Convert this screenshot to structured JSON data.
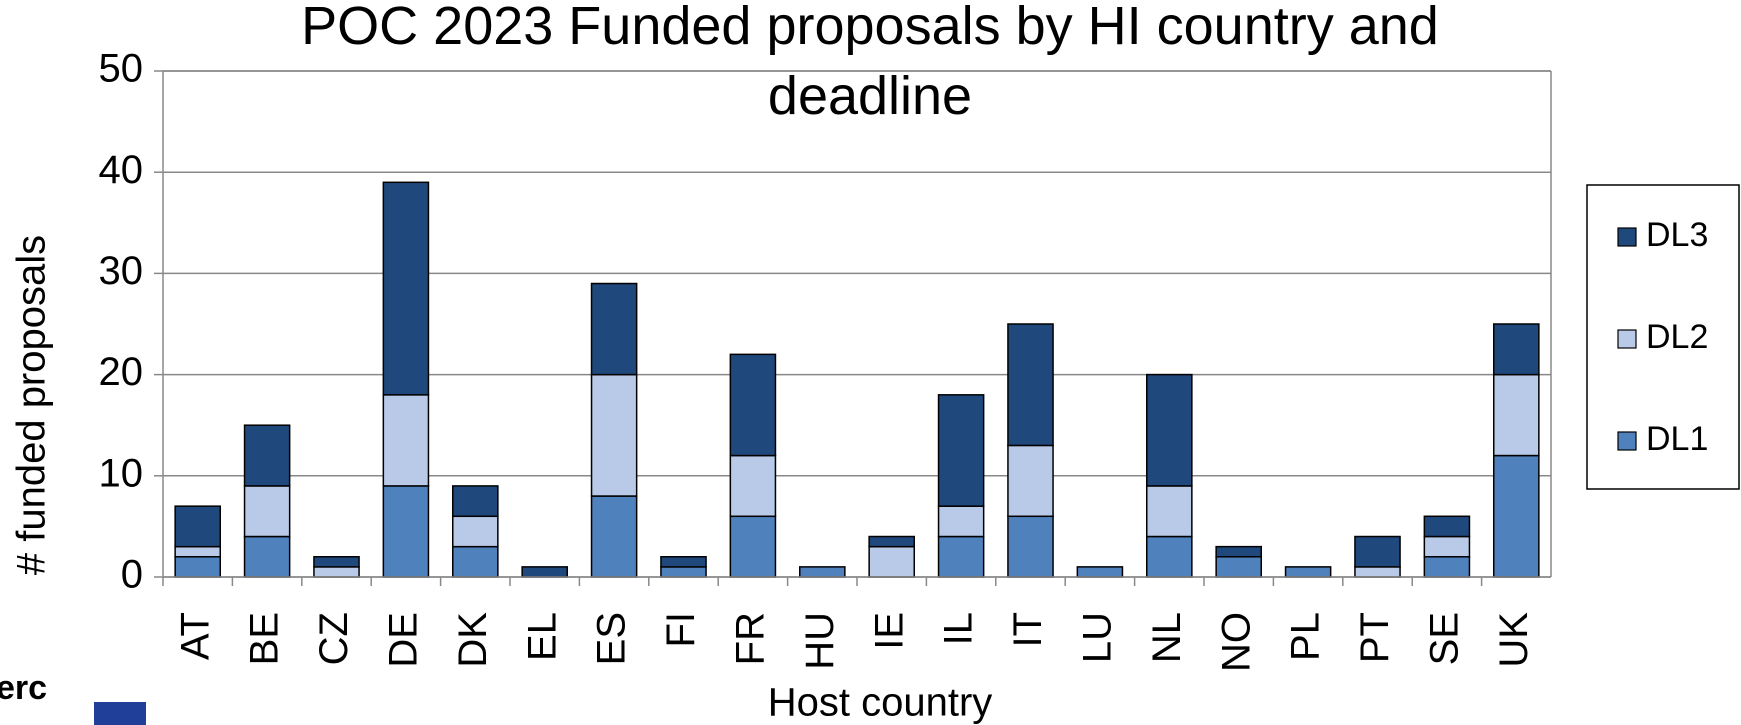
{
  "chart_data": {
    "type": "stacked_bar",
    "title": "POC 2023 Funded proposals by HI country and deadline",
    "xlabel": "Host country",
    "ylabel": "# funded proposals",
    "categories": [
      "AT",
      "BE",
      "CZ",
      "DE",
      "DK",
      "EL",
      "ES",
      "FI",
      "FR",
      "HU",
      "IE",
      "IL",
      "IT",
      "LU",
      "NL",
      "NO",
      "PL",
      "PT",
      "SE",
      "UK"
    ],
    "series": [
      {
        "name": "DL1",
        "color": "#4f81bd",
        "values": [
          2,
          4,
          0,
          9,
          3,
          0,
          8,
          1,
          6,
          1,
          0,
          4,
          6,
          1,
          4,
          2,
          1,
          0,
          2,
          12
        ]
      },
      {
        "name": "DL2",
        "color": "#b9c9e8",
        "values": [
          1,
          5,
          1,
          9,
          3,
          0,
          12,
          0,
          6,
          0,
          3,
          3,
          7,
          0,
          5,
          0,
          0,
          1,
          2,
          8
        ]
      },
      {
        "name": "DL3",
        "color": "#1f497d",
        "values": [
          4,
          6,
          1,
          21,
          3,
          1,
          9,
          1,
          10,
          0,
          1,
          11,
          12,
          0,
          11,
          1,
          0,
          3,
          2,
          5
        ]
      }
    ],
    "ylim": [
      0,
      50
    ],
    "yticks": [
      0,
      10,
      20,
      30,
      40,
      50
    ],
    "grid": true,
    "legend": "right",
    "logo_text": "erc"
  }
}
